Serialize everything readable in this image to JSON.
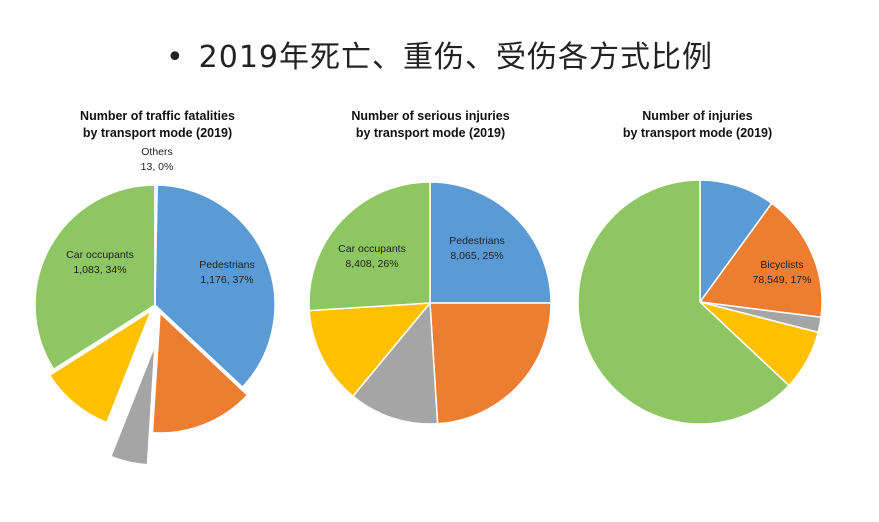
{
  "slide": {
    "bullet": "•",
    "title": "2019年死亡、重伤、受伤各方式比例"
  },
  "colors": {
    "pedestrians": "#5b9bd5",
    "bicyclists": "#ed7d31",
    "gray": "#a5a5a5",
    "yellow": "#ffc000",
    "car_occupants": "#8dc663",
    "others": "#d9d9d9"
  },
  "chart_data": [
    {
      "type": "pie",
      "title_line1": "Number of traffic fatalities",
      "title_line2": "by transport mode (2019)",
      "slices": [
        {
          "key": "pedestrians",
          "color": "#5b9bd5",
          "fraction": 0.37,
          "label_name": "Pedestrians",
          "label_value": "1,176, 37%"
        },
        {
          "key": "bicyclists",
          "color": "#ed7d31",
          "fraction": 0.14,
          "label_name": "",
          "label_value": ""
        },
        {
          "key": "gray",
          "color": "#a5a5a5",
          "fraction": 0.05,
          "label_name": "",
          "label_value": ""
        },
        {
          "key": "yellow",
          "color": "#ffc000",
          "fraction": 0.1,
          "label_name": "",
          "label_value": ""
        },
        {
          "key": "car_occupants",
          "color": "#8dc663",
          "fraction": 0.34,
          "label_name": "Car occupants",
          "label_value": "1,083, 34%"
        },
        {
          "key": "others",
          "color": "#d9d9d9",
          "fraction": 0.003,
          "label_name": "Others",
          "label_value": "13, 0%"
        }
      ]
    },
    {
      "type": "pie",
      "title_line1": "Number of serious injuries",
      "title_line2": "by transport mode (2019)",
      "slices": [
        {
          "key": "pedestrians",
          "color": "#5b9bd5",
          "fraction": 0.25,
          "label_name": "Pedestrians",
          "label_value": "8,065, 25%"
        },
        {
          "key": "bicyclists",
          "color": "#ed7d31",
          "fraction": 0.24,
          "label_name": "",
          "label_value": ""
        },
        {
          "key": "gray",
          "color": "#a5a5a5",
          "fraction": 0.12,
          "label_name": "",
          "label_value": ""
        },
        {
          "key": "yellow",
          "color": "#ffc000",
          "fraction": 0.13,
          "label_name": "",
          "label_value": ""
        },
        {
          "key": "car_occupants",
          "color": "#8dc663",
          "fraction": 0.26,
          "label_name": "Car occupants",
          "label_value": "8,408, 26%"
        }
      ]
    },
    {
      "type": "pie",
      "title_line1": "Number of injuries",
      "title_line2": "by transport mode (2019)",
      "slices": [
        {
          "key": "pedestrians",
          "color": "#5b9bd5",
          "fraction": 0.1,
          "label_name": "",
          "label_value": ""
        },
        {
          "key": "bicyclists",
          "color": "#ed7d31",
          "fraction": 0.17,
          "label_name": "Bicyclists",
          "label_value": "78,549, 17%"
        },
        {
          "key": "gray",
          "color": "#a5a5a5",
          "fraction": 0.02,
          "label_name": "",
          "label_value": ""
        },
        {
          "key": "yellow",
          "color": "#ffc000",
          "fraction": 0.08,
          "label_name": "",
          "label_value": ""
        },
        {
          "key": "car_occupants",
          "color": "#8dc663",
          "fraction": 0.63,
          "label_name": "",
          "label_value": ""
        }
      ]
    }
  ]
}
